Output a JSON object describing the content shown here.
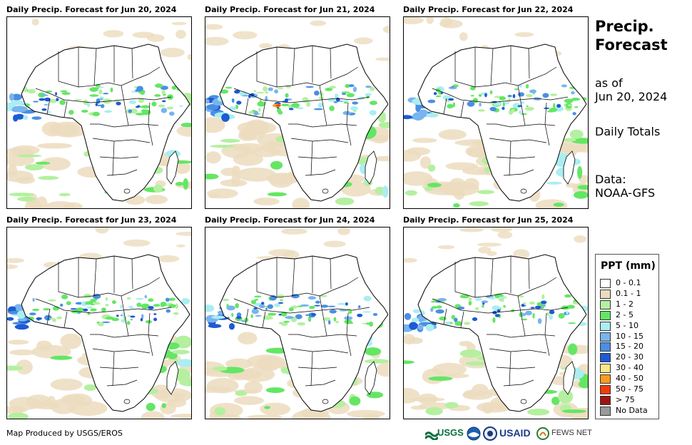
{
  "panels": [
    {
      "title": "Daily Precip. Forecast for Jun 20, 2024"
    },
    {
      "title": "Daily Precip. Forecast for Jun 21, 2024"
    },
    {
      "title": "Daily Precip. Forecast for Jun 22, 2024"
    },
    {
      "title": "Daily Precip. Forecast for Jun 23, 2024"
    },
    {
      "title": "Daily Precip. Forecast for Jun 24, 2024"
    },
    {
      "title": "Daily Precip. Forecast for Jun 25, 2024"
    }
  ],
  "sidebar": {
    "title_line1": "Precip.",
    "title_line2": "Forecast",
    "as_of_label": "as of",
    "as_of_date": "Jun 20, 2024",
    "totals_label": "Daily Totals",
    "data_label": "Data:",
    "data_source": "NOAA-GFS"
  },
  "legend": {
    "title": "PPT (mm)",
    "items": [
      {
        "label": "0 - 0.1",
        "color": "#ffffff"
      },
      {
        "label": "0.1 - 1",
        "color": "#ecdcbe"
      },
      {
        "label": "1 - 2",
        "color": "#b4f0a0"
      },
      {
        "label": "2 - 5",
        "color": "#64e664"
      },
      {
        "label": "5 - 10",
        "color": "#aaeef2"
      },
      {
        "label": "10 - 15",
        "color": "#78b4ee"
      },
      {
        "label": "15 - 20",
        "color": "#4a8ee4"
      },
      {
        "label": "20 - 30",
        "color": "#1e5ad2"
      },
      {
        "label": "30 - 40",
        "color": "#fae68c"
      },
      {
        "label": "40 - 50",
        "color": "#fa9c1e"
      },
      {
        "label": "50 - 75",
        "color": "#f03c0a"
      },
      {
        "label": "> 75",
        "color": "#a01414"
      },
      {
        "label": "No Data",
        "color": "#9a9a9a"
      }
    ]
  },
  "footer": {
    "credit": "Map Produced by USGS/EROS",
    "logos": {
      "usgs": "USGS",
      "usaid": "USAID",
      "fewsnet": "FEWS NET"
    }
  }
}
